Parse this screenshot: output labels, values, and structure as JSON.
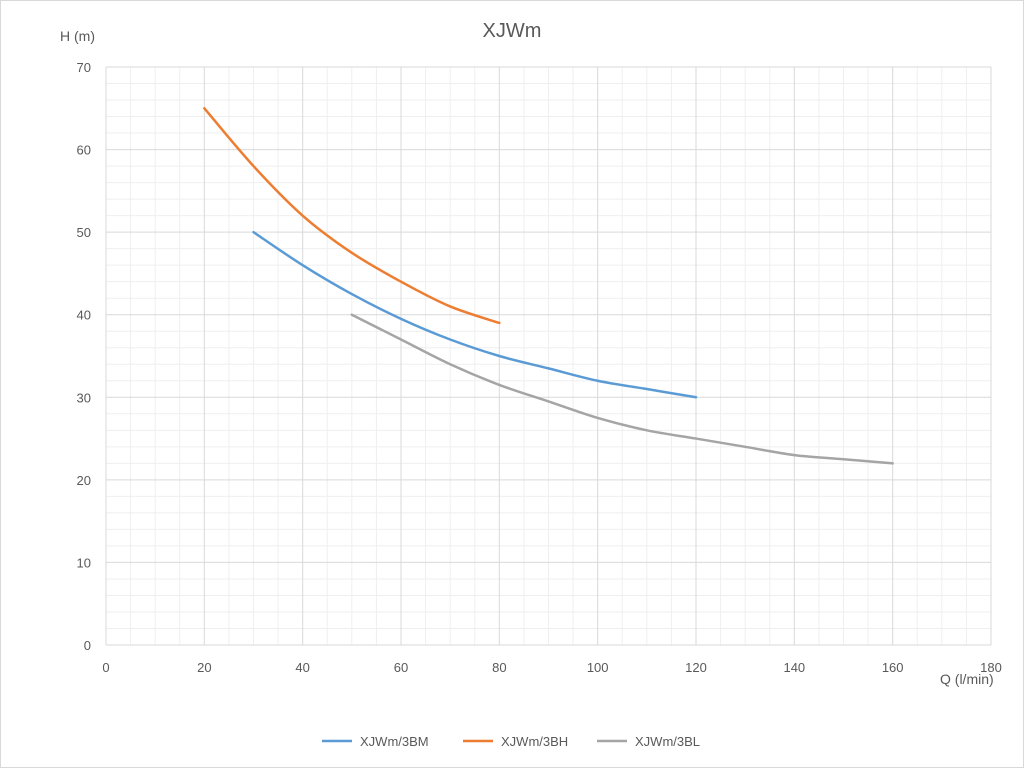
{
  "chart_data": {
    "type": "line",
    "title": "XJWm",
    "xlabel": "Q (l/min)",
    "ylabel": "H (m)",
    "xlim": [
      0,
      180
    ],
    "ylim": [
      0,
      70
    ],
    "x_ticks": [
      0,
      20,
      40,
      60,
      80,
      100,
      120,
      140,
      160,
      180
    ],
    "y_ticks": [
      0,
      10,
      20,
      30,
      40,
      50,
      60,
      70
    ],
    "x_tick_labels": [
      "0",
      "20",
      "40",
      "60",
      "80",
      "100",
      "120",
      "140",
      "160",
      "180"
    ],
    "y_tick_labels": [
      "0",
      "10",
      "20",
      "30",
      "40",
      "50",
      "60",
      "70"
    ],
    "grid": true,
    "minor_grid": true,
    "legend_position": "bottom",
    "series": [
      {
        "name": "XJWm/3BM",
        "color": "#5b9bd5",
        "points": [
          [
            30,
            50
          ],
          [
            40,
            46
          ],
          [
            50,
            42.5
          ],
          [
            60,
            39.5
          ],
          [
            70,
            37
          ],
          [
            80,
            35
          ],
          [
            90,
            33.5
          ],
          [
            100,
            32
          ],
          [
            110,
            31
          ],
          [
            120,
            30
          ]
        ]
      },
      {
        "name": "XJWm/3BH",
        "color": "#ed7d31",
        "points": [
          [
            20,
            65
          ],
          [
            30,
            58
          ],
          [
            40,
            52
          ],
          [
            50,
            47.5
          ],
          [
            60,
            44
          ],
          [
            70,
            41
          ],
          [
            80,
            39
          ]
        ]
      },
      {
        "name": "XJWm/3BL",
        "color": "#a5a5a5",
        "points": [
          [
            50,
            40
          ],
          [
            60,
            37
          ],
          [
            70,
            34
          ],
          [
            80,
            31.5
          ],
          [
            90,
            29.5
          ],
          [
            100,
            27.5
          ],
          [
            110,
            26
          ],
          [
            120,
            25
          ],
          [
            130,
            24
          ],
          [
            140,
            23
          ],
          [
            150,
            22.5
          ],
          [
            160,
            22
          ]
        ]
      }
    ]
  }
}
